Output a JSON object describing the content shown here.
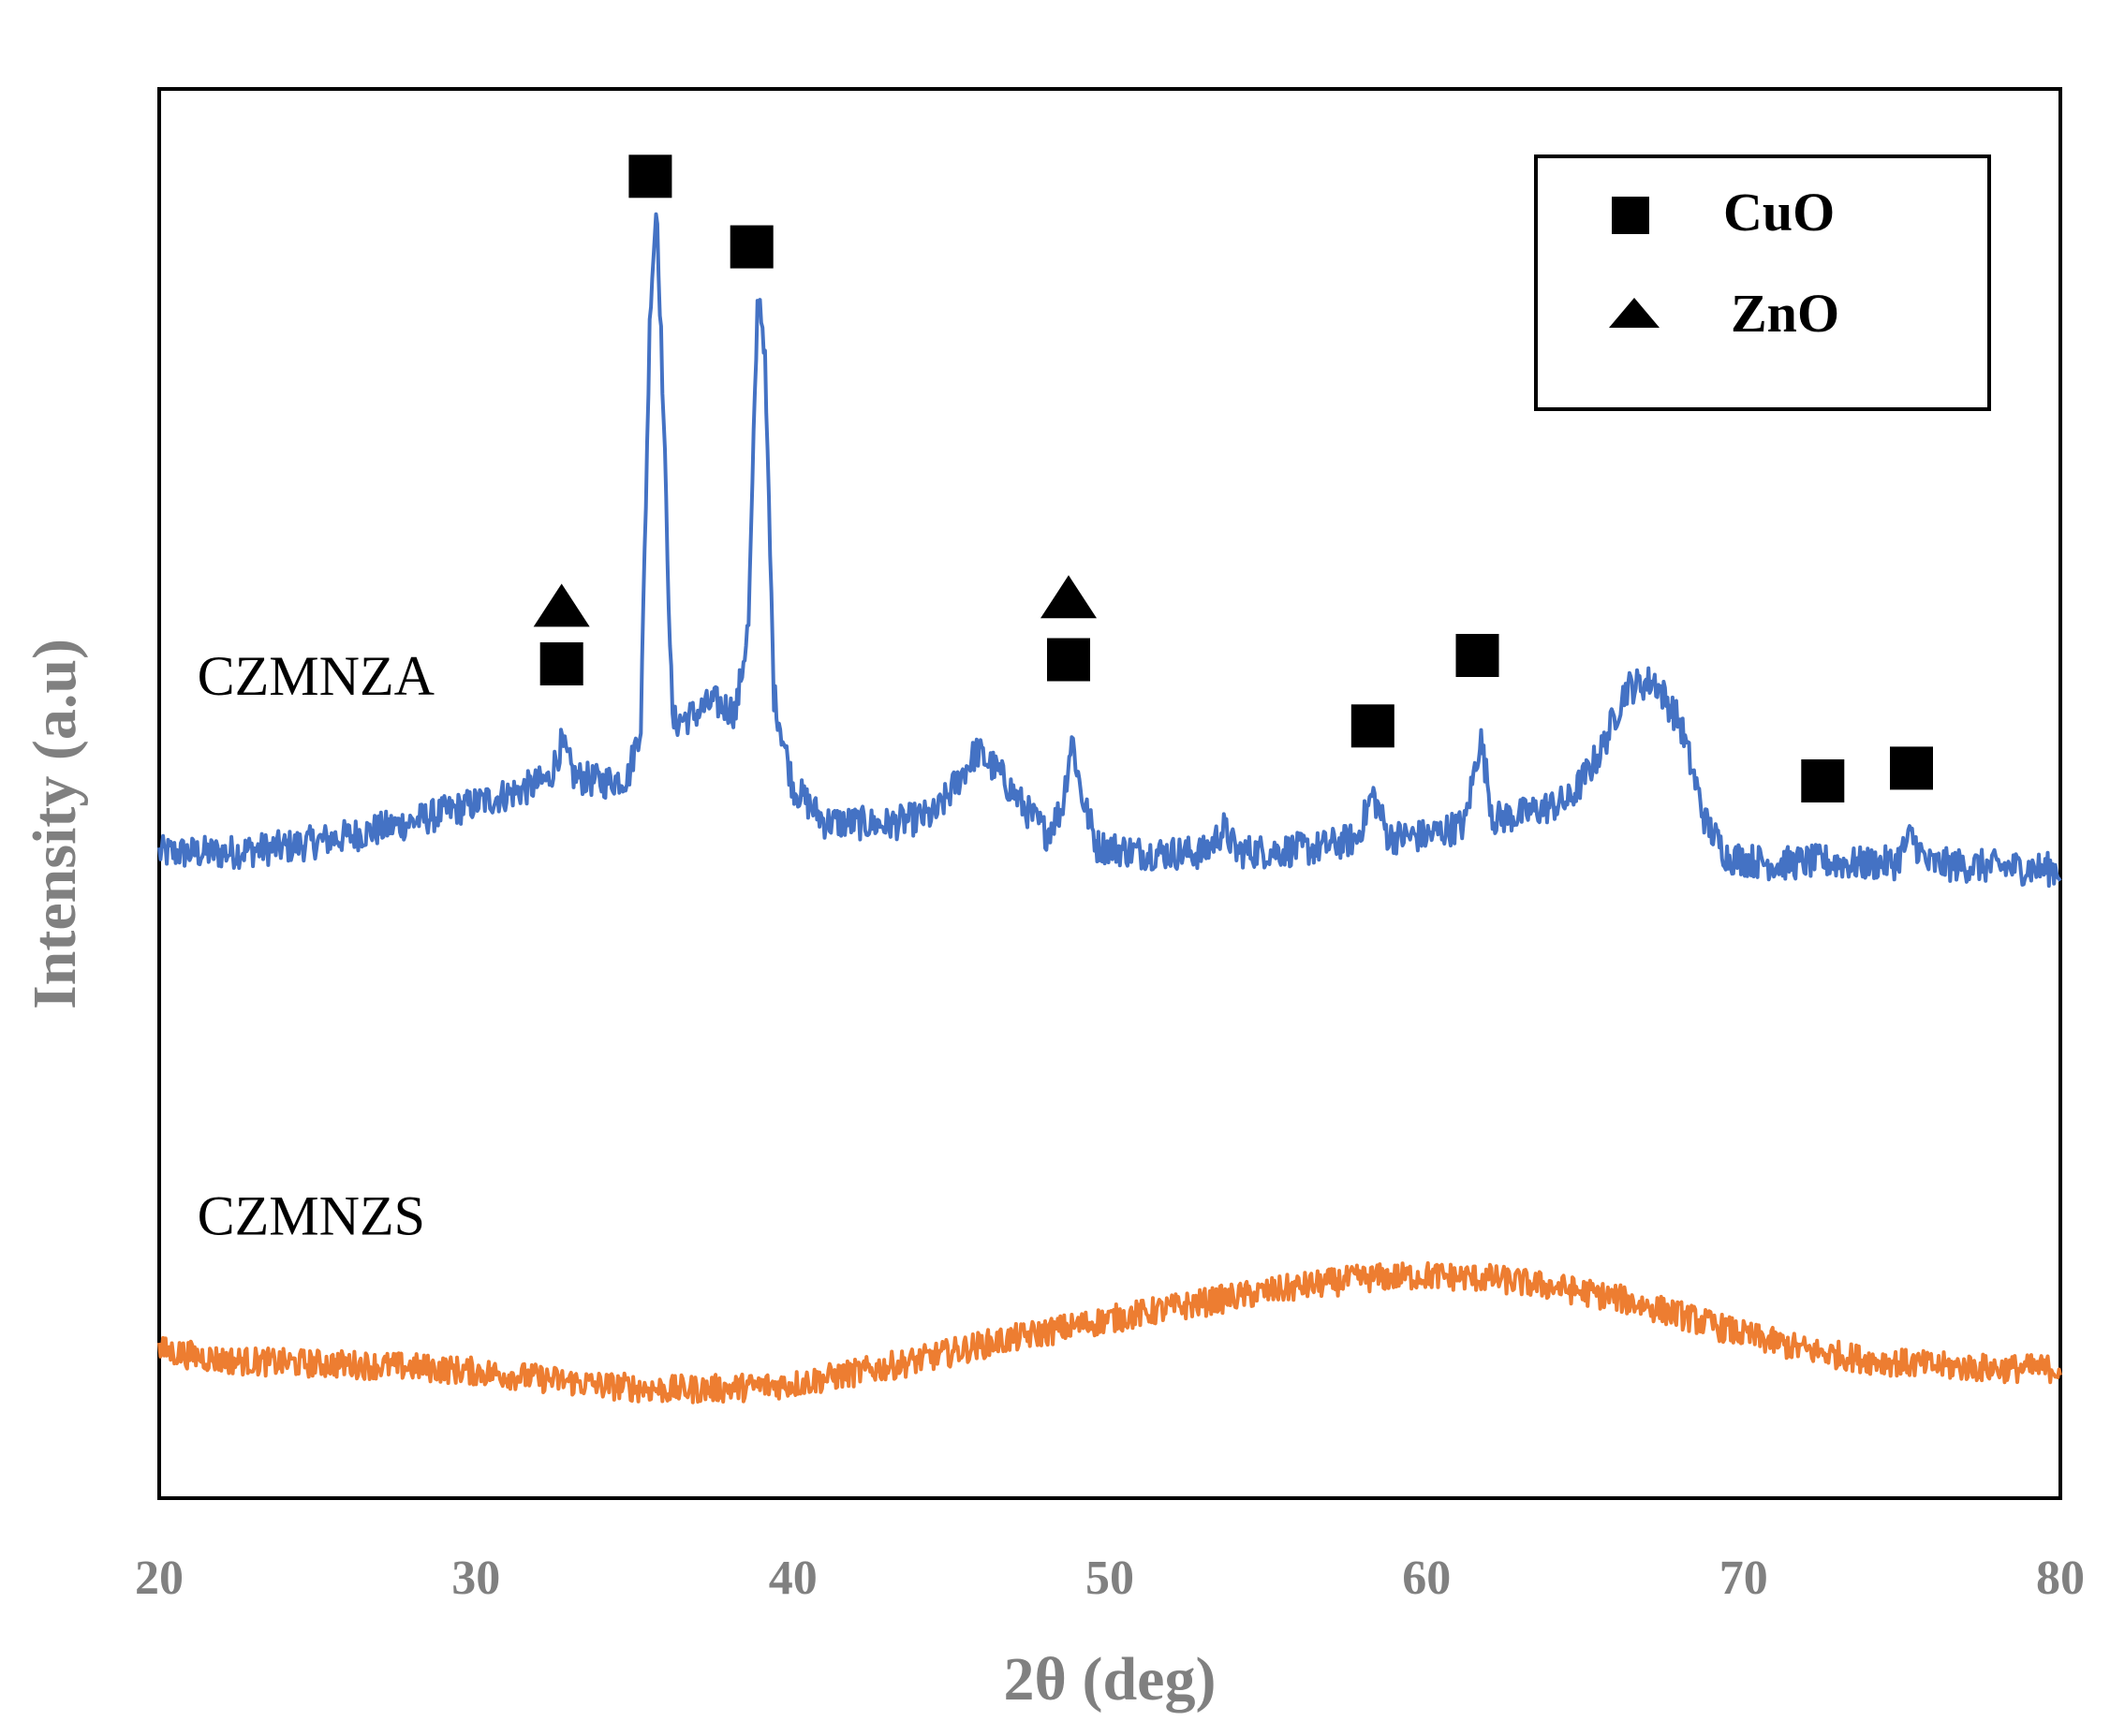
{
  "chart_data": {
    "type": "line",
    "title": "",
    "xlabel": "2θ (deg)",
    "ylabel": "Intensity (a.u)",
    "xlim": [
      20,
      80
    ],
    "ylim": [
      0,
      100
    ],
    "x_ticks": [
      20,
      30,
      40,
      50,
      60,
      70,
      80
    ],
    "grid": false,
    "legend_position": "top-right",
    "legend": [
      {
        "marker": "square",
        "label": "CuO"
      },
      {
        "marker": "triangle",
        "label": "ZnO"
      }
    ],
    "series": [
      {
        "name": "CZMNZA",
        "color": "#4472C4",
        "noise": 1.2,
        "points": [
          [
            20,
            45.8
          ],
          [
            22,
            45.8
          ],
          [
            24,
            46.2
          ],
          [
            26,
            47.0
          ],
          [
            28,
            48.0
          ],
          [
            30,
            49.3
          ],
          [
            31.5,
            50.3
          ],
          [
            32.3,
            51.0
          ],
          [
            32.7,
            53.5
          ],
          [
            33.1,
            51.2
          ],
          [
            34,
            50.8
          ],
          [
            34.8,
            51.2
          ],
          [
            35.2,
            55.0
          ],
          [
            35.5,
            85.0
          ],
          [
            35.7,
            92.0
          ],
          [
            35.9,
            78.0
          ],
          [
            36.2,
            55.0
          ],
          [
            36.8,
            55.5
          ],
          [
            37.5,
            56.5
          ],
          [
            38.2,
            55.8
          ],
          [
            38.6,
            62.0
          ],
          [
            38.9,
            86.0
          ],
          [
            39.1,
            82.0
          ],
          [
            39.4,
            57.0
          ],
          [
            40,
            50.5
          ],
          [
            41,
            48.0
          ],
          [
            43,
            47.8
          ],
          [
            44.5,
            48.5
          ],
          [
            45.8,
            53.0
          ],
          [
            46.5,
            51.5
          ],
          [
            47.3,
            49.0
          ],
          [
            48.0,
            47.2
          ],
          [
            48.5,
            49.0
          ],
          [
            48.8,
            54.0
          ],
          [
            49.1,
            50.0
          ],
          [
            49.6,
            46.3
          ],
          [
            51,
            45.8
          ],
          [
            53,
            45.8
          ],
          [
            53.6,
            47.5
          ],
          [
            54,
            45.9
          ],
          [
            55,
            45.9
          ],
          [
            56.5,
            46.1
          ],
          [
            57.8,
            46.8
          ],
          [
            58.3,
            50.0
          ],
          [
            58.8,
            46.9
          ],
          [
            60,
            47.0
          ],
          [
            61.2,
            47.8
          ],
          [
            61.7,
            54.0
          ],
          [
            62.1,
            48.2
          ],
          [
            63,
            48.5
          ],
          [
            64.5,
            49.5
          ],
          [
            65.5,
            53.0
          ],
          [
            66.3,
            57.5
          ],
          [
            67.2,
            58.0
          ],
          [
            68,
            55.0
          ],
          [
            68.8,
            48.0
          ],
          [
            69.5,
            45.5
          ],
          [
            71,
            45.0
          ],
          [
            72.5,
            45.2
          ],
          [
            73.5,
            45.0
          ],
          [
            74.8,
            45.1
          ],
          [
            75.3,
            47.0
          ],
          [
            75.8,
            45.0
          ],
          [
            77,
            44.9
          ],
          [
            80,
            44.6
          ]
        ]
      },
      {
        "name": "CZMNZS",
        "color": "#ED7D31",
        "noise": 1.0,
        "points": [
          [
            20,
            10.5
          ],
          [
            22,
            9.8
          ],
          [
            24,
            9.6
          ],
          [
            26,
            9.5
          ],
          [
            28,
            9.3
          ],
          [
            30,
            9.0
          ],
          [
            32,
            8.5
          ],
          [
            34,
            8.0
          ],
          [
            36,
            7.7
          ],
          [
            38,
            7.8
          ],
          [
            40,
            8.1
          ],
          [
            42,
            8.9
          ],
          [
            44,
            9.8
          ],
          [
            46,
            10.9
          ],
          [
            48,
            11.8
          ],
          [
            50,
            12.7
          ],
          [
            52,
            13.5
          ],
          [
            54,
            14.3
          ],
          [
            56,
            15.0
          ],
          [
            58,
            15.6
          ],
          [
            60,
            15.8
          ],
          [
            62,
            15.6
          ],
          [
            64,
            15.0
          ],
          [
            66,
            14.2
          ],
          [
            68,
            13.0
          ],
          [
            70,
            11.6
          ],
          [
            72,
            10.5
          ],
          [
            74,
            9.8
          ],
          [
            76,
            9.4
          ],
          [
            78,
            9.2
          ],
          [
            80,
            9.2
          ]
        ]
      }
    ],
    "annotations": [
      {
        "marker": "square",
        "x": 32.7,
        "y": 59.2,
        "phase": "CuO"
      },
      {
        "marker": "triangle",
        "x": 32.7,
        "y": 63.3,
        "phase": "ZnO"
      },
      {
        "marker": "square",
        "x": 35.5,
        "y": 93.8,
        "phase": "CuO"
      },
      {
        "marker": "square",
        "x": 38.7,
        "y": 88.8,
        "phase": "CuO"
      },
      {
        "marker": "square",
        "x": 48.7,
        "y": 59.5,
        "phase": "CuO"
      },
      {
        "marker": "triangle",
        "x": 48.7,
        "y": 63.9,
        "phase": "ZnO"
      },
      {
        "marker": "square",
        "x": 58.3,
        "y": 54.8,
        "phase": "CuO"
      },
      {
        "marker": "square",
        "x": 61.6,
        "y": 59.8,
        "phase": "CuO"
      },
      {
        "marker": "square",
        "x": 72.5,
        "y": 50.9,
        "phase": "CuO"
      },
      {
        "marker": "square",
        "x": 75.3,
        "y": 51.8,
        "phase": "CuO"
      }
    ],
    "series_labels": [
      {
        "text": "CZMNZA",
        "x": 21.2,
        "y": 57.0
      },
      {
        "text": "CZMNZS",
        "x": 21.2,
        "y": 18.7
      }
    ]
  }
}
